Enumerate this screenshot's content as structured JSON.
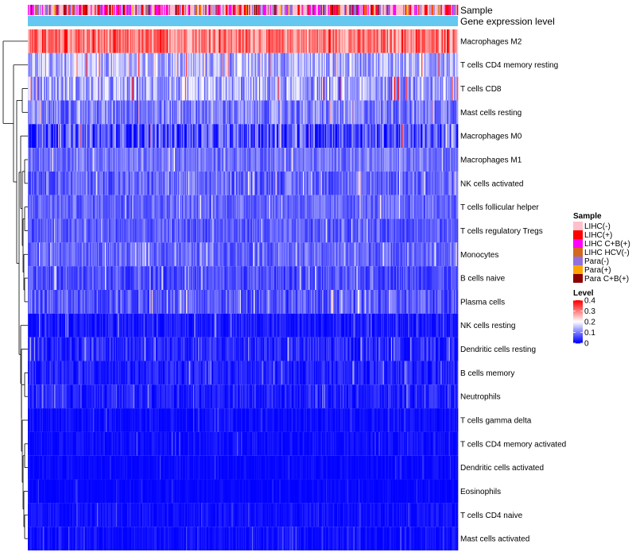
{
  "chart_data": {
    "type": "heatmap",
    "title": "",
    "annotation_tracks": [
      {
        "name": "Sample",
        "label": "Sample"
      },
      {
        "name": "Gene expression level",
        "label": "Gene expression level"
      }
    ],
    "rows": [
      {
        "label": "Macrophages M2",
        "mean_level": 0.3,
        "spread": 0.07
      },
      {
        "label": "T cells CD4 memory resting",
        "mean_level": 0.14,
        "spread": 0.07
      },
      {
        "label": "T cells CD8",
        "mean_level": 0.13,
        "spread": 0.08
      },
      {
        "label": "Mast cells resting",
        "mean_level": 0.1,
        "spread": 0.06
      },
      {
        "label": "Macrophages M0",
        "mean_level": 0.06,
        "spread": 0.08
      },
      {
        "label": "Macrophages M1",
        "mean_level": 0.09,
        "spread": 0.04
      },
      {
        "label": "NK cells activated",
        "mean_level": 0.08,
        "spread": 0.05
      },
      {
        "label": "T cells follicular helper",
        "mean_level": 0.08,
        "spread": 0.04
      },
      {
        "label": "T cells regulatory  Tregs",
        "mean_level": 0.07,
        "spread": 0.04
      },
      {
        "label": "Monocytes",
        "mean_level": 0.08,
        "spread": 0.04
      },
      {
        "label": "B cells naive",
        "mean_level": 0.06,
        "spread": 0.04
      },
      {
        "label": "Plasma cells",
        "mean_level": 0.07,
        "spread": 0.05
      },
      {
        "label": "NK cells resting",
        "mean_level": 0.02,
        "spread": 0.03
      },
      {
        "label": "Dendritic cells resting",
        "mean_level": 0.03,
        "spread": 0.04
      },
      {
        "label": "B cells memory",
        "mean_level": 0.025,
        "spread": 0.03
      },
      {
        "label": "Neutrophils",
        "mean_level": 0.025,
        "spread": 0.03
      },
      {
        "label": "T cells gamma delta",
        "mean_level": 0.01,
        "spread": 0.02
      },
      {
        "label": "T cells CD4 memory activated",
        "mean_level": 0.01,
        "spread": 0.02
      },
      {
        "label": "Dendritic cells activated",
        "mean_level": 0.005,
        "spread": 0.015
      },
      {
        "label": "Eosinophils",
        "mean_level": 0.004,
        "spread": 0.012
      },
      {
        "label": "T cells CD4 naive",
        "mean_level": 0.01,
        "spread": 0.02
      },
      {
        "label": "Mast cells activated",
        "mean_level": 0.01,
        "spread": 0.02
      }
    ],
    "n_columns": 424,
    "legend_sample": {
      "title": "Sample",
      "items": [
        {
          "label": "LIHC(-)",
          "color": "#FFC0CB"
        },
        {
          "label": "LIHC(+)",
          "color": "#FF0000"
        },
        {
          "label": "LIHC C+B(+)",
          "color": "#FF00FF"
        },
        {
          "label": "LIHC HCV(-)",
          "color": "#D2691E"
        },
        {
          "label": "Para(-)",
          "color": "#9370DB"
        },
        {
          "label": "Para(+)",
          "color": "#FFA500"
        },
        {
          "label": "Para C+B(+)",
          "color": "#8B0000"
        }
      ]
    },
    "legend_level": {
      "title": "Level",
      "ticks": [
        "0.4",
        "0.3",
        "0.2",
        "0.1",
        "0"
      ],
      "range": [
        0,
        0.4
      ],
      "color_low": "#0000FF",
      "color_mid": "#FFFFFF",
      "color_high": "#FF0000"
    },
    "expression_track_color": "#64C8F0",
    "dendrogram": "hierarchical clustering of rows (left side)"
  }
}
